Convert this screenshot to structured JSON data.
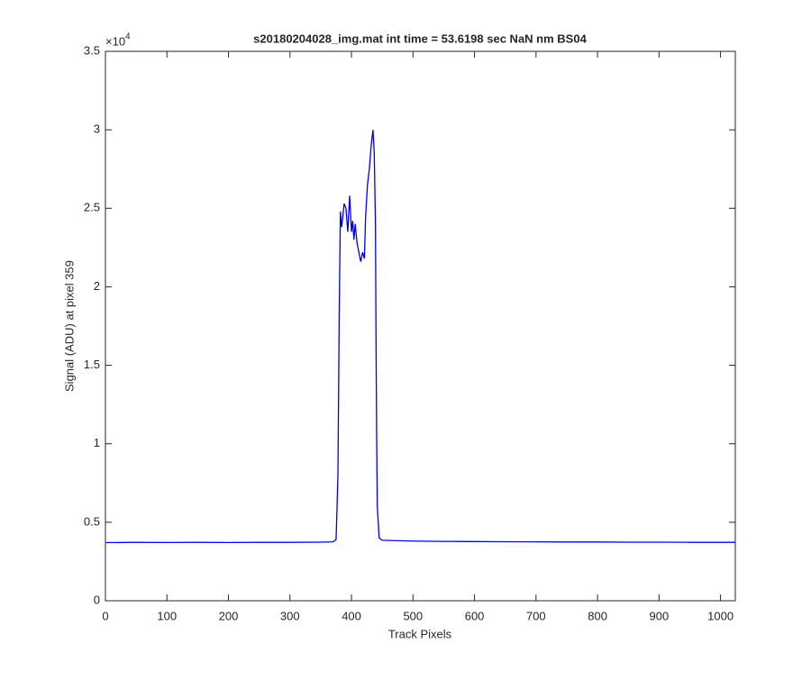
{
  "chart_data": {
    "type": "line",
    "title": "s20180204028_img.mat int time = 53.6198 sec  NaN nm BS04",
    "x_label": "Track Pixels",
    "y_label": "Signal (ADU) at pixel 359",
    "y_multiplier": "×10",
    "y_multiplier_exponent": "4",
    "x": [
      1,
      50,
      100,
      150,
      200,
      250,
      300,
      350,
      370,
      375,
      378,
      380,
      382,
      384,
      386,
      388,
      391,
      394,
      397,
      400,
      402,
      404,
      406,
      409,
      412,
      415,
      418,
      421,
      423,
      426,
      429,
      432,
      435,
      437,
      439,
      440,
      441,
      442,
      445,
      450,
      500,
      550,
      600,
      650,
      700,
      750,
      800,
      850,
      900,
      950,
      1000,
      1024
    ],
    "series": [
      {
        "name": "Signal",
        "color": "#0000e6",
        "values": [
          0.37,
          0.372,
          0.371,
          0.372,
          0.371,
          0.372,
          0.372,
          0.373,
          0.375,
          0.39,
          0.8,
          1.8,
          2.48,
          2.38,
          2.45,
          2.53,
          2.5,
          2.35,
          2.58,
          2.35,
          2.42,
          2.3,
          2.4,
          2.28,
          2.22,
          2.16,
          2.22,
          2.18,
          2.45,
          2.65,
          2.75,
          2.9,
          3.0,
          2.85,
          2.4,
          1.6,
          1.0,
          0.6,
          0.4,
          0.385,
          0.38,
          0.378,
          0.377,
          0.376,
          0.375,
          0.374,
          0.374,
          0.373,
          0.373,
          0.372,
          0.372,
          0.372
        ]
      }
    ],
    "xlim": [
      0,
      1024
    ],
    "xticks": [
      0,
      100,
      200,
      300,
      400,
      500,
      600,
      700,
      800,
      900,
      1000
    ],
    "ylim": [
      0,
      3.5
    ],
    "yticks": [
      0,
      0.5,
      1,
      1.5,
      2,
      2.5,
      3,
      3.5
    ],
    "grid": false
  }
}
